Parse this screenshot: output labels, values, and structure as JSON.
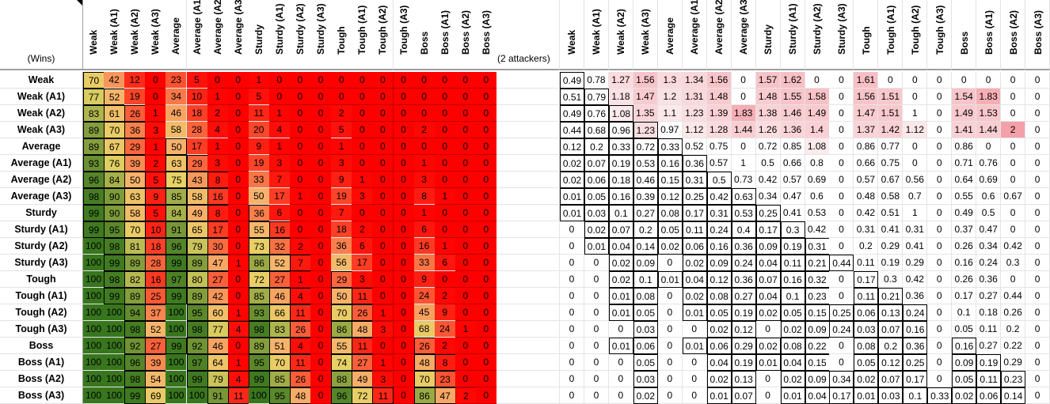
{
  "corner_label": "(Wins)",
  "separator_label": "(2 attackers)",
  "column_headers": [
    "Weak",
    "Weak (A1)",
    "Weak (A2)",
    "Weak (A3)",
    "Average",
    "Average (A1)",
    "Average (A2)",
    "Average (A3)",
    "Sturdy",
    "Sturdy (A1)",
    "Sturdy (A2)",
    "Sturdy (A3)",
    "Tough",
    "Tough (A1)",
    "Tough (A2)",
    "Tough (A3)",
    "Boss",
    "Boss (A1)",
    "Boss (A2)",
    "Boss (A3)"
  ],
  "row_headers": [
    "Weak",
    "Weak (A1)",
    "Weak (A2)",
    "Weak (A3)",
    "Average",
    "Average (A1)",
    "Average (A2)",
    "Average (A3)",
    "Sturdy",
    "Sturdy (A1)",
    "Sturdy (A2)",
    "Sturdy (A3)",
    "Tough",
    "Tough (A1)",
    "Tough (A2)",
    "Tough (A3)",
    "Boss",
    "Boss (A1)",
    "Boss (A2)",
    "Boss (A3)"
  ],
  "wins_table": [
    [
      "70",
      "42",
      "12",
      "0",
      "23",
      "5",
      "0",
      "0",
      "1",
      "0",
      "0",
      "0",
      "0",
      "0",
      "0",
      "0",
      "0",
      "0",
      "0",
      "0"
    ],
    [
      "77",
      "52",
      "19",
      "0",
      "34",
      "10",
      "1",
      "0",
      "5",
      "0",
      "0",
      "0",
      "0",
      "0",
      "0",
      "0",
      "0",
      "0",
      "0",
      "0"
    ],
    [
      "83",
      "61",
      "26",
      "1",
      "46",
      "18",
      "2",
      "0",
      "11",
      "1",
      "0",
      "0",
      "2",
      "0",
      "0",
      "0",
      "0",
      "0",
      "0",
      "0"
    ],
    [
      "89",
      "70",
      "36",
      "3",
      "58",
      "28",
      "4",
      "0",
      "20",
      "4",
      "0",
      "0",
      "5",
      "0",
      "0",
      "0",
      "2",
      "0",
      "0",
      "0"
    ],
    [
      "89",
      "67",
      "29",
      "1",
      "50",
      "17",
      "1",
      "0",
      "9",
      "1",
      "0",
      "0",
      "1",
      "0",
      "0",
      "0",
      "0",
      "0",
      "0",
      "0"
    ],
    [
      "93",
      "76",
      "39",
      "2",
      "63",
      "29",
      "3",
      "0",
      "19",
      "3",
      "0",
      "0",
      "3",
      "0",
      "0",
      "0",
      "1",
      "0",
      "0",
      "0"
    ],
    [
      "96",
      "84",
      "50",
      "5",
      "75",
      "43",
      "8",
      "0",
      "33",
      "7",
      "0",
      "0",
      "9",
      "1",
      "0",
      "0",
      "3",
      "0",
      "0",
      "0"
    ],
    [
      "98",
      "90",
      "63",
      "9",
      "85",
      "58",
      "16",
      "0",
      "50",
      "17",
      "1",
      "0",
      "19",
      "3",
      "0",
      "0",
      "8",
      "1",
      "0",
      "0"
    ],
    [
      "99",
      "90",
      "58",
      "5",
      "84",
      "49",
      "8",
      "0",
      "36",
      "6",
      "0",
      "0",
      "7",
      "0",
      "0",
      "0",
      "1",
      "0",
      "0",
      "0"
    ],
    [
      "99",
      "95",
      "70",
      "10",
      "91",
      "65",
      "17",
      "0",
      "55",
      "16",
      "0",
      "0",
      "18",
      "2",
      "0",
      "0",
      "6",
      "0",
      "0",
      "0"
    ],
    [
      "100",
      "98",
      "81",
      "18",
      "96",
      "79",
      "30",
      "0",
      "73",
      "32",
      "2",
      "0",
      "36",
      "6",
      "0",
      "0",
      "16",
      "1",
      "0",
      "0"
    ],
    [
      "100",
      "99",
      "89",
      "28",
      "99",
      "89",
      "47",
      "1",
      "86",
      "52",
      "7",
      "0",
      "56",
      "17",
      "0",
      "0",
      "33",
      "6",
      "0",
      "0"
    ],
    [
      "100",
      "98",
      "82",
      "16",
      "97",
      "80",
      "27",
      "0",
      "72",
      "27",
      "1",
      "0",
      "29",
      "3",
      "0",
      "0",
      "9",
      "0",
      "0",
      "0"
    ],
    [
      "100",
      "99",
      "89",
      "25",
      "99",
      "89",
      "42",
      "0",
      "85",
      "46",
      "4",
      "0",
      "50",
      "11",
      "0",
      "0",
      "24",
      "2",
      "0",
      "0"
    ],
    [
      "100",
      "100",
      "94",
      "37",
      "100",
      "95",
      "60",
      "1",
      "93",
      "66",
      "11",
      "0",
      "70",
      "26",
      "1",
      "0",
      "45",
      "9",
      "0",
      "0"
    ],
    [
      "100",
      "100",
      "98",
      "52",
      "100",
      "98",
      "77",
      "4",
      "98",
      "83",
      "26",
      "0",
      "86",
      "48",
      "3",
      "0",
      "68",
      "24",
      "1",
      "0"
    ],
    [
      "100",
      "100",
      "92",
      "27",
      "99",
      "92",
      "46",
      "0",
      "89",
      "51",
      "4",
      "0",
      "55",
      "11",
      "0",
      "0",
      "26",
      "2",
      "0",
      "0"
    ],
    [
      "100",
      "100",
      "96",
      "39",
      "100",
      "97",
      "64",
      "1",
      "95",
      "70",
      "11",
      "0",
      "74",
      "27",
      "1",
      "0",
      "48",
      "8",
      "0",
      "0"
    ],
    [
      "100",
      "100",
      "98",
      "54",
      "100",
      "99",
      "79",
      "4",
      "99",
      "85",
      "26",
      "0",
      "88",
      "49",
      "3",
      "0",
      "70",
      "23",
      "0",
      "0"
    ],
    [
      "100",
      "100",
      "99",
      "69",
      "100",
      "100",
      "91",
      "11",
      "100",
      "95",
      "48",
      "0",
      "96",
      "72",
      "11",
      "0",
      "86",
      "47",
      "2",
      "0"
    ]
  ],
  "ratio_table": [
    [
      "0.49",
      "0.78",
      "1.27",
      "1.56",
      "1.3",
      "1.34",
      "1.56",
      "0",
      "1.57",
      "1.62",
      "0",
      "0",
      "1.61",
      "0",
      "0",
      "0",
      "0",
      "0",
      "0",
      "0"
    ],
    [
      "0.51",
      "0.79",
      "1.18",
      "1.47",
      "1.2",
      "1.31",
      "1.48",
      "0",
      "1.48",
      "1.55",
      "1.58",
      "0",
      "1.56",
      "1.51",
      "0",
      "0",
      "1.54",
      "1.83",
      "0",
      "0"
    ],
    [
      "0.49",
      "0.76",
      "1.08",
      "1.35",
      "1.1",
      "1.23",
      "1.39",
      "1.83",
      "1.38",
      "1.46",
      "1.49",
      "0",
      "1.47",
      "1.51",
      "1",
      "0",
      "1.49",
      "1.53",
      "0",
      "0"
    ],
    [
      "0.44",
      "0.68",
      "0.96",
      "1.23",
      "0.97",
      "1.12",
      "1.28",
      "1.44",
      "1.26",
      "1.36",
      "1.4",
      "0",
      "1.37",
      "1.42",
      "1.12",
      "0",
      "1.41",
      "1.44",
      "2",
      "0"
    ],
    [
      "0.12",
      "0.2",
      "0.33",
      "0.72",
      "0.33",
      "0.52",
      "0.75",
      "0",
      "0.72",
      "0.85",
      "1.08",
      "0",
      "0.86",
      "0.77",
      "0",
      "0",
      "0.86",
      "0",
      "0",
      "0"
    ],
    [
      "0.02",
      "0.07",
      "0.19",
      "0.53",
      "0.16",
      "0.36",
      "0.57",
      "1",
      "0.5",
      "0.66",
      "0.8",
      "0",
      "0.66",
      "0.75",
      "0",
      "0",
      "0.71",
      "0.76",
      "0",
      "0"
    ],
    [
      "0.02",
      "0.06",
      "0.18",
      "0.46",
      "0.15",
      "0.31",
      "0.5",
      "0.73",
      "0.42",
      "0.57",
      "0.69",
      "0",
      "0.57",
      "0.67",
      "0.56",
      "0",
      "0.64",
      "0.69",
      "0",
      "0"
    ],
    [
      "0.01",
      "0.05",
      "0.16",
      "0.39",
      "0.12",
      "0.25",
      "0.42",
      "0.63",
      "0.34",
      "0.47",
      "0.6",
      "0",
      "0.48",
      "0.58",
      "0.7",
      "0",
      "0.55",
      "0.6",
      "0.67",
      "0"
    ],
    [
      "0.01",
      "0.03",
      "0.1",
      "0.27",
      "0.08",
      "0.17",
      "0.31",
      "0.53",
      "0.25",
      "0.41",
      "0.53",
      "0",
      "0.42",
      "0.51",
      "1",
      "0",
      "0.49",
      "0.5",
      "0",
      "0"
    ],
    [
      "0",
      "0.02",
      "0.07",
      "0.2",
      "0.05",
      "0.11",
      "0.24",
      "0.4",
      "0.17",
      "0.3",
      "0.42",
      "0",
      "0.31",
      "0.41",
      "0.31",
      "0",
      "0.37",
      "0.47",
      "0",
      "0"
    ],
    [
      "0",
      "0.01",
      "0.04",
      "0.14",
      "0.02",
      "0.06",
      "0.16",
      "0.36",
      "0.09",
      "0.19",
      "0.31",
      "0",
      "0.2",
      "0.29",
      "0.41",
      "0",
      "0.26",
      "0.34",
      "0.42",
      "0"
    ],
    [
      "0",
      "0",
      "0.02",
      "0.09",
      "0",
      "0.02",
      "0.09",
      "0.24",
      "0.04",
      "0.11",
      "0.21",
      "0.44",
      "0.11",
      "0.19",
      "0.29",
      "0",
      "0.16",
      "0.24",
      "0.3",
      "0"
    ],
    [
      "0",
      "0",
      "0.02",
      "0.1",
      "0.01",
      "0.04",
      "0.12",
      "0.36",
      "0.07",
      "0.16",
      "0.32",
      "0",
      "0.17",
      "0.3",
      "0.42",
      "0",
      "0.26",
      "0.36",
      "0",
      "0"
    ],
    [
      "0",
      "0",
      "0.01",
      "0.08",
      "0",
      "0.02",
      "0.08",
      "0.27",
      "0.04",
      "0.1",
      "0.23",
      "0",
      "0.11",
      "0.21",
      "0.36",
      "0",
      "0.17",
      "0.27",
      "0.44",
      "0"
    ],
    [
      "0",
      "0",
      "0.01",
      "0.05",
      "0",
      "0.01",
      "0.05",
      "0.19",
      "0.02",
      "0.05",
      "0.15",
      "0.25",
      "0.06",
      "0.13",
      "0.24",
      "0",
      "0.1",
      "0.18",
      "0.26",
      "0"
    ],
    [
      "0",
      "0",
      "0",
      "0.03",
      "0",
      "0",
      "0.02",
      "0.12",
      "0",
      "0.02",
      "0.09",
      "0.24",
      "0.03",
      "0.07",
      "0.16",
      "0",
      "0.05",
      "0.11",
      "0.2",
      "0"
    ],
    [
      "0",
      "0",
      "0.01",
      "0.06",
      "0",
      "0.01",
      "0.06",
      "0.29",
      "0.02",
      "0.08",
      "0.22",
      "0",
      "0.08",
      "0.2",
      "0.36",
      "0",
      "0.16",
      "0.27",
      "0.22",
      "0"
    ],
    [
      "0",
      "0",
      "0",
      "0.05",
      "0",
      "0",
      "0.04",
      "0.19",
      "0.01",
      "0.04",
      "0.15",
      "0",
      "0.05",
      "0.12",
      "0.25",
      "0",
      "0.09",
      "0.19",
      "0.29",
      "0"
    ],
    [
      "0",
      "0",
      "0",
      "0.03",
      "0",
      "0",
      "0.02",
      "0.13",
      "0",
      "0.02",
      "0.09",
      "0.34",
      "0.02",
      "0.07",
      "0.17",
      "0",
      "0.05",
      "0.11",
      "0.23",
      "0"
    ],
    [
      "0",
      "0",
      "0",
      "0.02",
      "0",
      "0",
      "0.01",
      "0.07",
      "0",
      "0.01",
      "0.04",
      "0.17",
      "0.01",
      "0.03",
      "0.1",
      "0.33",
      "0.02",
      "0.06",
      "0.14",
      "0"
    ]
  ],
  "colors": {
    "wins_low": "#ff0000",
    "wins_mid": "#f6b26b",
    "wins_yellow": "#e6d265",
    "wins_high": "#38761d",
    "ratio_high": "#f4a0a8",
    "ratio_low": "#ffffff"
  }
}
